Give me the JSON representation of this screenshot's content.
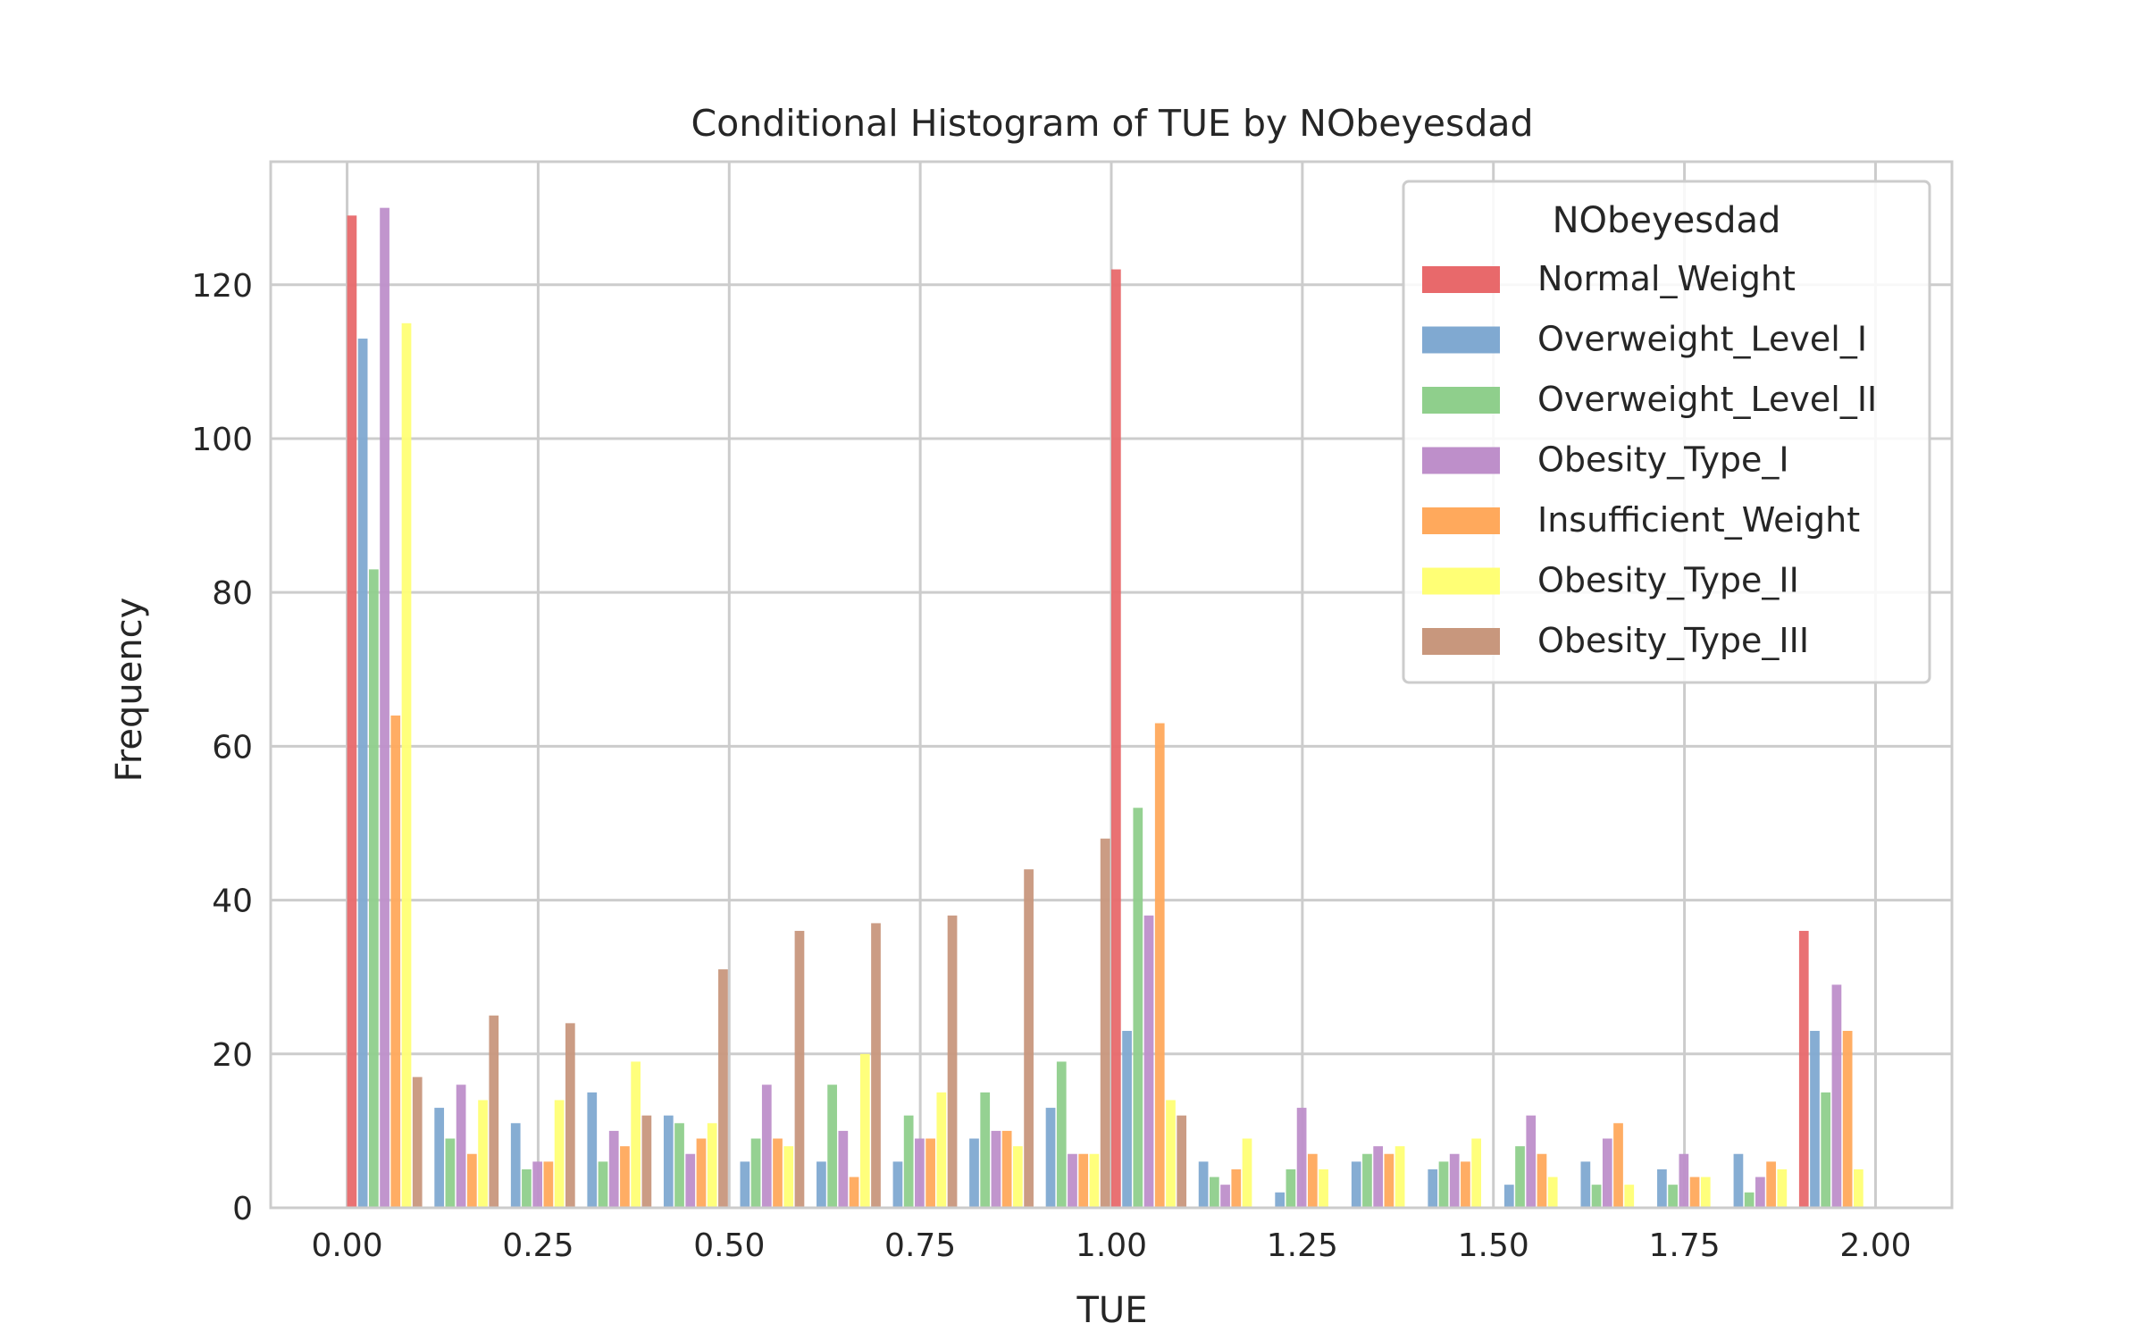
{
  "chart_data": {
    "type": "bar",
    "title": "Conditional Histogram of TUE by NObeyesdad",
    "xlabel": "TUE",
    "ylabel": "Frequency",
    "xlim": [
      -0.1,
      2.1
    ],
    "ylim": [
      0,
      136
    ],
    "grid": true,
    "legend_title": "NObeyesdad",
    "legend_position": "top-right",
    "bin_edges": [
      0.0,
      0.1,
      0.2,
      0.3,
      0.4,
      0.5,
      0.6,
      0.7,
      0.8,
      0.9,
      1.0,
      1.1,
      1.2,
      1.3,
      1.4,
      1.5,
      1.6,
      1.7,
      1.8,
      1.9,
      2.0
    ],
    "x_ticks": [
      "0.00",
      "0.25",
      "0.50",
      "0.75",
      "1.00",
      "1.25",
      "1.50",
      "1.75",
      "2.00"
    ],
    "x_tick_values": [
      0,
      0.25,
      0.5,
      0.75,
      1.0,
      1.25,
      1.5,
      1.75,
      2.0
    ],
    "y_ticks": [
      "0",
      "20",
      "40",
      "60",
      "80",
      "100",
      "120"
    ],
    "y_tick_values": [
      0,
      20,
      40,
      60,
      80,
      100,
      120
    ],
    "series": [
      {
        "name": "Normal_Weight",
        "color": "#e8696b",
        "values": [
          129,
          0,
          0,
          0,
          0,
          0,
          0,
          0,
          0,
          0,
          122,
          0,
          0,
          0,
          0,
          0,
          0,
          0,
          0,
          36
        ]
      },
      {
        "name": "Overweight_Level_I",
        "color": "#80a9d1",
        "values": [
          113,
          13,
          11,
          15,
          12,
          6,
          6,
          6,
          9,
          13,
          23,
          6,
          2,
          6,
          5,
          3,
          6,
          5,
          7,
          23
        ]
      },
      {
        "name": "Overweight_Level_II",
        "color": "#8fcf8c",
        "values": [
          83,
          9,
          5,
          6,
          11,
          9,
          16,
          12,
          15,
          19,
          52,
          4,
          5,
          7,
          6,
          8,
          3,
          3,
          2,
          15
        ]
      },
      {
        "name": "Obesity_Type_I",
        "color": "#be8fca",
        "values": [
          130,
          16,
          6,
          10,
          7,
          16,
          10,
          9,
          10,
          7,
          38,
          3,
          13,
          8,
          7,
          12,
          9,
          7,
          4,
          29
        ]
      },
      {
        "name": "Insufficient_Weight",
        "color": "#ffa95c",
        "values": [
          64,
          7,
          6,
          8,
          9,
          9,
          4,
          9,
          10,
          7,
          63,
          5,
          7,
          7,
          6,
          7,
          11,
          4,
          6,
          23
        ]
      },
      {
        "name": "Obesity_Type_II",
        "color": "#ffff75",
        "values": [
          115,
          14,
          14,
          19,
          11,
          8,
          20,
          15,
          8,
          7,
          14,
          9,
          5,
          8,
          9,
          4,
          3,
          4,
          5,
          5
        ]
      },
      {
        "name": "Obesity_Type_III",
        "color": "#c8977d",
        "values": [
          17,
          25,
          24,
          12,
          31,
          36,
          37,
          38,
          44,
          48,
          12,
          0,
          0,
          0,
          0,
          0,
          0,
          0,
          0,
          0
        ]
      }
    ]
  }
}
